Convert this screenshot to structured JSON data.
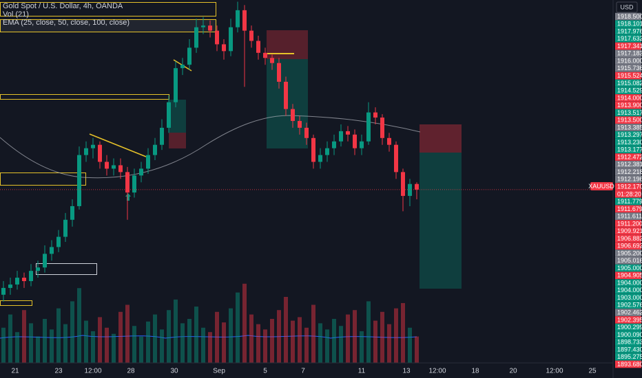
{
  "header": {
    "title": "Gold Spot / U.S. Dollar, 4h, OANDA",
    "volume": "Vol (21)",
    "ema": "EMA (25, close, 50, close, 100, close)",
    "currency": "USD",
    "symbol": "XAUUSD"
  },
  "price_labels": [
    {
      "text": "1918.500",
      "color": "#787b86"
    },
    {
      "text": "1918.101",
      "color": "#089981"
    },
    {
      "text": "1917.976",
      "color": "#089981"
    },
    {
      "text": "1917.632",
      "color": "#089981"
    },
    {
      "text": "1917.341",
      "color": "#f23645"
    },
    {
      "text": "1917.183",
      "color": "#787b86"
    },
    {
      "text": "1916.000",
      "color": "#787b86"
    },
    {
      "text": "1915.736",
      "color": "#787b86"
    },
    {
      "text": "1915.524",
      "color": "#f23645"
    },
    {
      "text": "1915.082",
      "color": "#089981"
    },
    {
      "text": "1914.529",
      "color": "#089981"
    },
    {
      "text": "1914.000",
      "color": "#f23645"
    },
    {
      "text": "1913.900",
      "color": "#f23645"
    },
    {
      "text": "1913.517",
      "color": "#089981"
    },
    {
      "text": "1913.500",
      "color": "#f23645"
    },
    {
      "text": "1913.385",
      "color": "#787b86"
    },
    {
      "text": "1913.297",
      "color": "#089981"
    },
    {
      "text": "1913.230",
      "color": "#089981"
    },
    {
      "text": "1913.177",
      "color": "#089981"
    },
    {
      "text": "1912.472",
      "color": "#f23645"
    },
    {
      "text": "1912.381",
      "color": "#787b86"
    },
    {
      "text": "1912.218",
      "color": "#787b86"
    },
    {
      "text": "1912.196",
      "color": "#787b86"
    },
    {
      "text": "1912.170",
      "color": "#f23645"
    },
    {
      "text": "01:28:20",
      "color": "#f23645"
    },
    {
      "text": "1911.779",
      "color": "#089981"
    },
    {
      "text": "1911.679",
      "color": "#f23645"
    },
    {
      "text": "1911.611",
      "color": "#787b86"
    },
    {
      "text": "1911.200",
      "color": "#f23645"
    },
    {
      "text": "1909.921",
      "color": "#f23645"
    },
    {
      "text": "1906.882",
      "color": "#f23645"
    },
    {
      "text": "1906.692",
      "color": "#f23645"
    },
    {
      "text": "1905.200",
      "color": "#787b86"
    },
    {
      "text": "1905.016",
      "color": "#787b86"
    },
    {
      "text": "1905.000",
      "color": "#089981"
    },
    {
      "text": "1904.905",
      "color": "#f23645"
    },
    {
      "text": "1904.000",
      "color": "#089981"
    },
    {
      "text": "1904.000",
      "color": "#089981"
    },
    {
      "text": "1903.000",
      "color": "#089981"
    },
    {
      "text": "1902.576",
      "color": "#089981"
    },
    {
      "text": "1902.462",
      "color": "#787b86"
    },
    {
      "text": "1902.395",
      "color": "#f23645"
    },
    {
      "text": "1900.299",
      "color": "#089981"
    },
    {
      "text": "1900.090",
      "color": "#089981"
    },
    {
      "text": "1898.733",
      "color": "#089981"
    },
    {
      "text": "1897.430",
      "color": "#089981"
    },
    {
      "text": "1895.275",
      "color": "#089981"
    },
    {
      "text": "1893.680",
      "color": "#f23645"
    }
  ],
  "time_labels": [
    "21",
    "23",
    "12:00",
    "28",
    "30",
    "Sep",
    "5",
    "7",
    "11",
    "13",
    "12:00",
    "18",
    "20",
    "12:00",
    "25"
  ],
  "chart_data": {
    "type": "candlestick",
    "up_color": "#089981",
    "down_color": "#f23645",
    "ylim": [
      1902.0,
      1923.3
    ],
    "vlim": [
      0,
      100
    ],
    "open": [
      1906.0,
      1906.4,
      1906.6,
      1907.0,
      1906.8,
      1907.4,
      1907.6,
      1908.4,
      1908.8,
      1909.4,
      1910.4,
      1911.2,
      1914.2,
      1914.6,
      1914.8,
      1913.8,
      1913.4,
      1913.6,
      1913.2,
      1912.0,
      1913.0,
      1913.4,
      1914.2,
      1914.8,
      1915.8,
      1917.3,
      1919.3,
      1919.5,
      1920.5,
      1921.7,
      1921.8,
      1921.5,
      1920.7,
      1920.3,
      1921.7,
      1922.7,
      1921.5,
      1920.9,
      1920.2,
      1919.9,
      1919.6,
      1918.5,
      1916.9,
      1916.2,
      1915.8,
      1915.2,
      1913.8,
      1914.2,
      1914.6,
      1915.0,
      1915.6,
      1915.4,
      1914.6,
      1915.0,
      1916.7,
      1916.4,
      1915.2,
      1914.8,
      1913.2,
      1911.8,
      1912.5
    ],
    "high": [
      1906.8,
      1907.0,
      1907.4,
      1907.3,
      1907.8,
      1908.0,
      1908.9,
      1909.2,
      1909.8,
      1910.8,
      1911.6,
      1914.7,
      1915.0,
      1915.2,
      1915.0,
      1914.2,
      1914.0,
      1914.0,
      1913.5,
      1913.4,
      1913.8,
      1914.6,
      1915.2,
      1916.3,
      1917.7,
      1919.7,
      1919.9,
      1921.0,
      1922.2,
      1922.3,
      1922.1,
      1921.8,
      1921.0,
      1922.2,
      1923.2,
      1923.0,
      1921.8,
      1921.2,
      1920.5,
      1920.1,
      1919.9,
      1918.8,
      1917.2,
      1916.5,
      1916.1,
      1915.4,
      1914.6,
      1915.0,
      1915.4,
      1916.0,
      1915.9,
      1915.7,
      1915.4,
      1917.3,
      1917.0,
      1916.6,
      1915.5,
      1915.0,
      1913.4,
      1912.8,
      1912.6
    ],
    "low": [
      1905.6,
      1906.0,
      1906.3,
      1906.4,
      1906.5,
      1907.0,
      1907.3,
      1908.0,
      1908.5,
      1909.1,
      1910.0,
      1911.0,
      1913.8,
      1914.0,
      1913.4,
      1913.0,
      1913.0,
      1912.8,
      1910.4,
      1911.7,
      1912.6,
      1913.1,
      1913.9,
      1914.5,
      1915.5,
      1917.0,
      1918.9,
      1919.2,
      1920.2,
      1921.3,
      1921.1,
      1920.3,
      1919.8,
      1920.0,
      1921.4,
      1918.2,
      1920.5,
      1919.8,
      1919.5,
      1919.2,
      1918.1,
      1916.5,
      1915.8,
      1915.4,
      1914.8,
      1913.4,
      1913.4,
      1913.8,
      1914.2,
      1914.7,
      1915.0,
      1914.2,
      1914.2,
      1914.8,
      1916.0,
      1914.8,
      1914.4,
      1912.8,
      1910.9,
      1911.2,
      1911.6
    ],
    "close": [
      1906.4,
      1906.6,
      1907.0,
      1906.8,
      1907.4,
      1907.6,
      1908.4,
      1908.8,
      1909.4,
      1910.4,
      1911.2,
      1914.2,
      1914.6,
      1914.8,
      1913.8,
      1913.4,
      1913.6,
      1913.2,
      1912.0,
      1913.0,
      1913.4,
      1914.2,
      1914.8,
      1915.8,
      1917.3,
      1919.3,
      1919.5,
      1920.5,
      1921.7,
      1921.8,
      1921.5,
      1920.7,
      1920.3,
      1921.7,
      1922.7,
      1921.5,
      1920.9,
      1920.2,
      1919.9,
      1919.6,
      1918.5,
      1916.9,
      1916.2,
      1915.8,
      1915.2,
      1913.8,
      1914.2,
      1914.6,
      1915.0,
      1915.6,
      1915.4,
      1914.6,
      1915.0,
      1916.7,
      1916.4,
      1915.2,
      1914.8,
      1913.2,
      1911.8,
      1912.5,
      1912.17
    ],
    "volume": [
      40,
      55,
      35,
      60,
      45,
      30,
      50,
      38,
      62,
      44,
      70,
      85,
      48,
      36,
      52,
      40,
      33,
      58,
      66,
      42,
      30,
      47,
      55,
      38,
      60,
      72,
      45,
      50,
      64,
      40,
      35,
      58,
      46,
      62,
      80,
      90,
      55,
      44,
      38,
      50,
      60,
      75,
      48,
      52,
      40,
      66,
      45,
      38,
      50,
      42,
      55,
      60,
      36,
      70,
      48,
      58,
      44,
      62,
      68,
      40,
      30
    ]
  }
}
